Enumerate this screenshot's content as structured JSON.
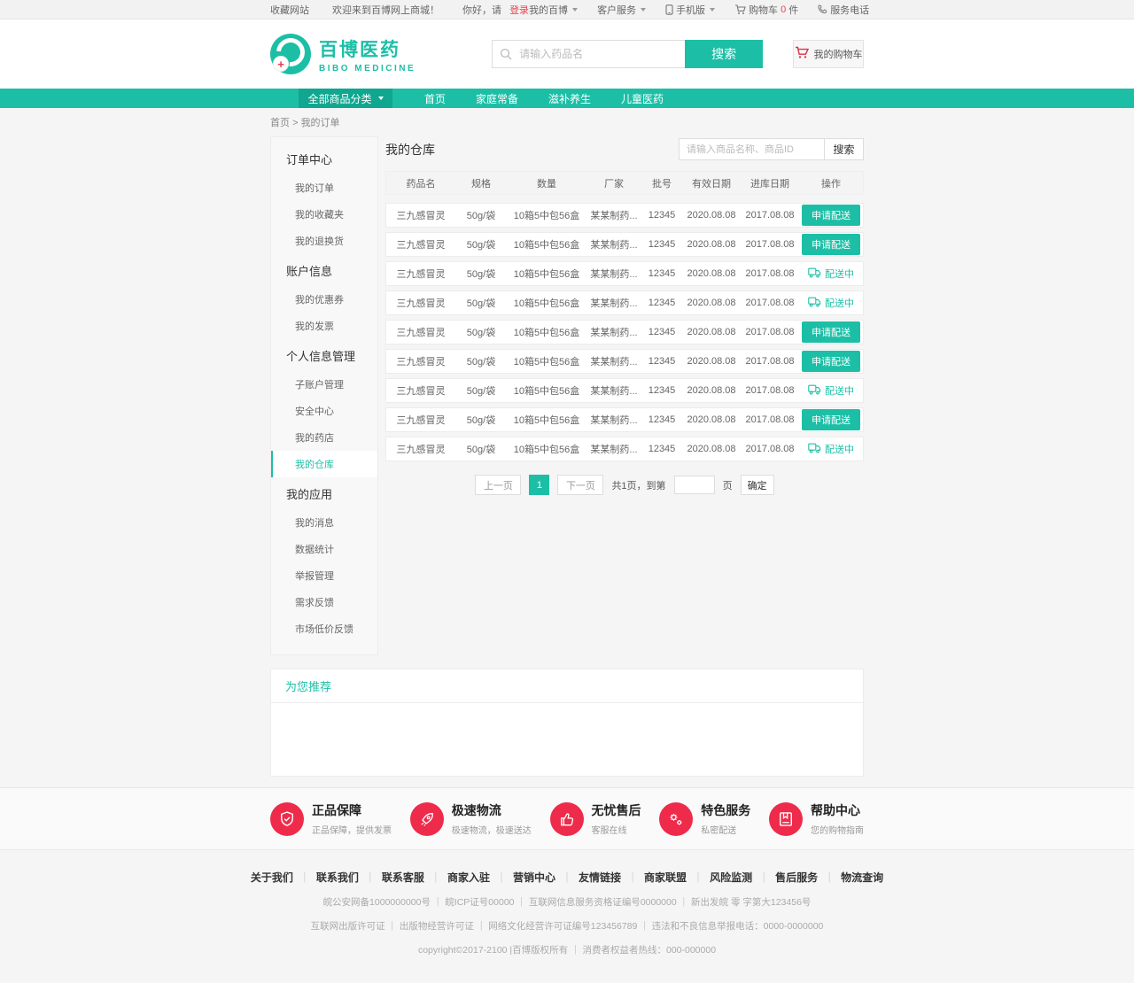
{
  "topbar": {
    "favorite": "收藏网站",
    "welcome": "欢迎来到百博网上商城！",
    "greeting": "你好，请",
    "login": "登录",
    "my_bibo": "我的百博",
    "customer_service": "客户服务",
    "mobile": "手机版",
    "cart_label": "购物车",
    "cart_count": "0",
    "cart_unit": "件",
    "service_phone": "服务电话"
  },
  "header": {
    "logo_title": "百博医药",
    "logo_subtitle": "BIBO MEDICINE",
    "search_placeholder": "请输入药品名",
    "search_button": "搜索",
    "cart_button": "我的购物车"
  },
  "nav": {
    "all_categories": "全部商品分类",
    "items": [
      "首页",
      "家庭常备",
      "滋补养生",
      "儿童医药"
    ]
  },
  "breadcrumb": {
    "home": "首页",
    "separator": ">",
    "current": "我的订单"
  },
  "sidebar": {
    "active": "我的仓库",
    "groups": [
      {
        "title": "订单中心",
        "items": [
          "我的订单",
          "我的收藏夹",
          "我的退换货"
        ]
      },
      {
        "title": "账户信息",
        "items": [
          "我的优惠券",
          "我的发票"
        ]
      },
      {
        "title": "个人信息管理",
        "items": [
          "子账户管理",
          "安全中心",
          "我的药店",
          "我的仓库"
        ]
      },
      {
        "title": "我的应用",
        "items": [
          "我的消息",
          "数据统计",
          "举报管理",
          "需求反馈",
          "市场低价反馈"
        ]
      }
    ]
  },
  "main": {
    "title": "我的仓库",
    "search_placeholder": "请输入商品名称、商品ID",
    "search_button": "搜索",
    "table": {
      "headers": [
        "药品名",
        "规格",
        "数量",
        "厂家",
        "批号",
        "有效日期",
        "进库日期",
        "操作"
      ],
      "action_labels": {
        "apply": "申请配送",
        "delivering": "配送中"
      },
      "rows": [
        {
          "name": "三九感冒灵",
          "spec": "50g/袋",
          "qty": "10箱5中包56盒",
          "manufacturer": "某某制药...",
          "batch": "12345",
          "valid_date": "2020.08.08",
          "stock_in_date": "2017.08.08",
          "action": "apply"
        },
        {
          "name": "三九感冒灵",
          "spec": "50g/袋",
          "qty": "10箱5中包56盒",
          "manufacturer": "某某制药...",
          "batch": "12345",
          "valid_date": "2020.08.08",
          "stock_in_date": "2017.08.08",
          "action": "apply"
        },
        {
          "name": "三九感冒灵",
          "spec": "50g/袋",
          "qty": "10箱5中包56盒",
          "manufacturer": "某某制药...",
          "batch": "12345",
          "valid_date": "2020.08.08",
          "stock_in_date": "2017.08.08",
          "action": "delivering"
        },
        {
          "name": "三九感冒灵",
          "spec": "50g/袋",
          "qty": "10箱5中包56盒",
          "manufacturer": "某某制药...",
          "batch": "12345",
          "valid_date": "2020.08.08",
          "stock_in_date": "2017.08.08",
          "action": "delivering"
        },
        {
          "name": "三九感冒灵",
          "spec": "50g/袋",
          "qty": "10箱5中包56盒",
          "manufacturer": "某某制药...",
          "batch": "12345",
          "valid_date": "2020.08.08",
          "stock_in_date": "2017.08.08",
          "action": "apply"
        },
        {
          "name": "三九感冒灵",
          "spec": "50g/袋",
          "qty": "10箱5中包56盒",
          "manufacturer": "某某制药...",
          "batch": "12345",
          "valid_date": "2020.08.08",
          "stock_in_date": "2017.08.08",
          "action": "apply"
        },
        {
          "name": "三九感冒灵",
          "spec": "50g/袋",
          "qty": "10箱5中包56盒",
          "manufacturer": "某某制药...",
          "batch": "12345",
          "valid_date": "2020.08.08",
          "stock_in_date": "2017.08.08",
          "action": "delivering"
        },
        {
          "name": "三九感冒灵",
          "spec": "50g/袋",
          "qty": "10箱5中包56盒",
          "manufacturer": "某某制药...",
          "batch": "12345",
          "valid_date": "2020.08.08",
          "stock_in_date": "2017.08.08",
          "action": "apply"
        },
        {
          "name": "三九感冒灵",
          "spec": "50g/袋",
          "qty": "10箱5中包56盒",
          "manufacturer": "某某制药...",
          "batch": "12345",
          "valid_date": "2020.08.08",
          "stock_in_date": "2017.08.08",
          "action": "delivering"
        }
      ]
    },
    "pagination": {
      "prev": "上一页",
      "current": "1",
      "next": "下一页",
      "info": "共1页，到第",
      "unit": "页",
      "confirm": "确定"
    }
  },
  "recommend": {
    "title": "为您推荐"
  },
  "features": {
    "items": [
      {
        "icon": "shield-check-icon",
        "title": "正品保障",
        "desc": "正品保障，提供发票"
      },
      {
        "icon": "rocket-icon",
        "title": "极速物流",
        "desc": "极速物流，极速送达"
      },
      {
        "icon": "thumb-up-icon",
        "title": "无忧售后",
        "desc": "客服在线"
      },
      {
        "icon": "gears-icon",
        "title": "特色服务",
        "desc": "私密配送"
      },
      {
        "icon": "book-icon",
        "title": "帮助中心",
        "desc": "您的购物指南"
      }
    ]
  },
  "footer": {
    "links": [
      "关于我们",
      "联系我们",
      "联系客服",
      "商家入驻",
      "营销中心",
      "友情链接",
      "商家联盟",
      "风险监测",
      "售后服务",
      "物流查询"
    ],
    "license1": "皖公安网备1000000000号 ｜ 皖ICP证号00000 ｜ 互联网信息服务资格证编号0000000 ｜ 新出发皖 零 字第大123456号",
    "license2": "互联网出版许可证 ｜ 出版物经营许可证 ｜ 网络文化经营许可证编号123456789 ｜ 违法和不良信息举报电话：0000-0000000",
    "copyright": "copyright©2017-2100 |百博版权所有 ｜ 消费者权益者热线：000-000000"
  },
  "colors": {
    "teal": "#1cbfa6",
    "teal_dark": "#0fa78f",
    "red": "#ee2b4a"
  }
}
